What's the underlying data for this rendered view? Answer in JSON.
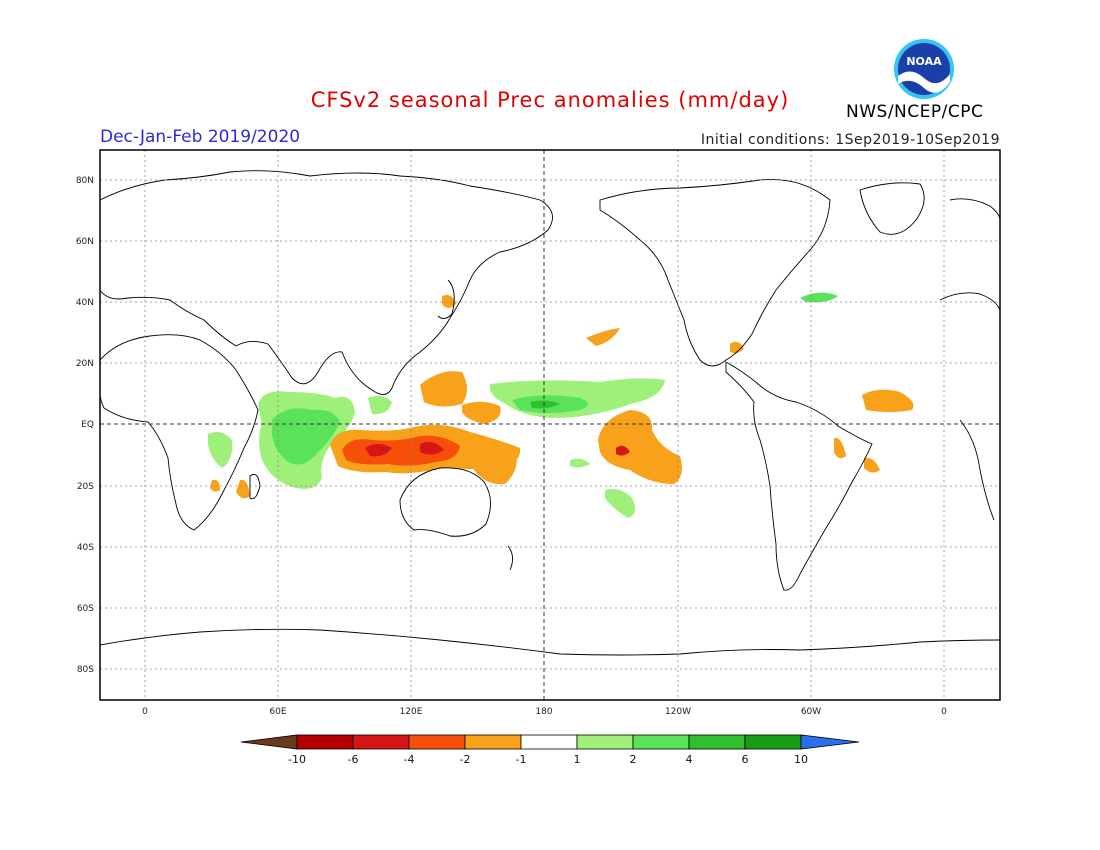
{
  "header": {
    "title": "CFSv2 seasonal Prec anomalies (mm/day)",
    "season": "Dec-Jan-Feb 2019/2020",
    "initial_conditions": "Initial conditions: 1Sep2019-10Sep2019",
    "agency": "NWS/NCEP/CPC",
    "logo_text": "NOAA"
  },
  "map": {
    "projection": "equirectangular",
    "lon_range": [
      -20,
      380
    ],
    "lat_range": [
      -90,
      90
    ],
    "grid": true,
    "lat_ticks": [
      "80N",
      "60N",
      "40N",
      "20N",
      "EQ",
      "20S",
      "40S",
      "60S",
      "80S"
    ],
    "lon_ticks": [
      "0",
      "60E",
      "120E",
      "180",
      "120W",
      "60W",
      "0"
    ]
  },
  "colorbar": {
    "tick_labels": [
      "-10",
      "-6",
      "-4",
      "-2",
      "-1",
      "1",
      "2",
      "4",
      "6",
      "10"
    ],
    "colors": [
      "#6b3a1e",
      "#b40000",
      "#d81515",
      "#f64f0a",
      "#f8a11a",
      "#ffffff",
      "#9ef07a",
      "#5ae35a",
      "#2fbf2f",
      "#169c16",
      "#2a6ff0"
    ]
  }
}
